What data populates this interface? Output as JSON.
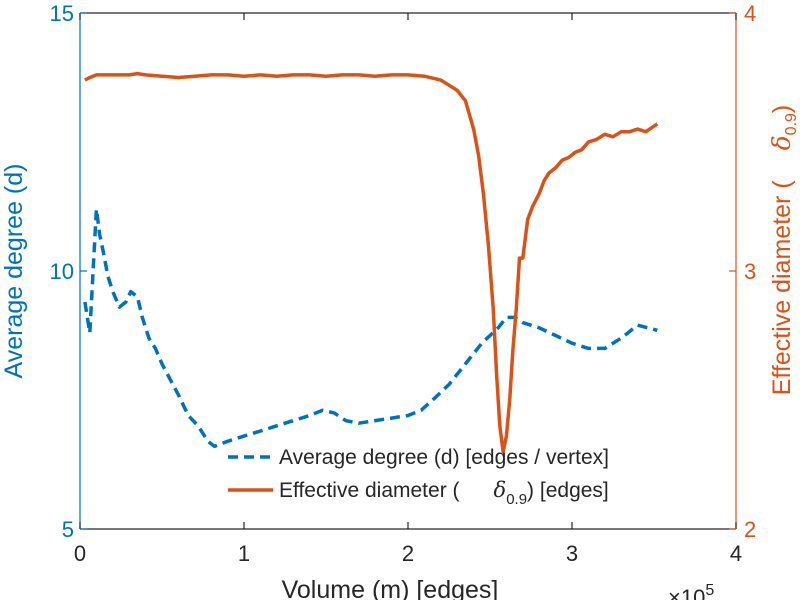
{
  "chart_data": {
    "type": "line",
    "x_exponent": "×10",
    "x_exponent_power": "5",
    "xlim": [
      0,
      4
    ],
    "xticks": [
      "0",
      "1",
      "2",
      "3",
      "4"
    ],
    "xlabel": "Volume (m) [edges]",
    "ylim_left": [
      5,
      15
    ],
    "yticks_left": [
      "5",
      "10",
      "15"
    ],
    "ylabel_left": "Average degree (d)",
    "ylim_right": [
      2,
      4
    ],
    "yticks_right": [
      "2",
      "3",
      "4"
    ],
    "ylabel_right_prefix": "Effective diameter (",
    "ylabel_right_symbol": "δ",
    "ylabel_right_subscript": "0.9",
    "ylabel_right_suffix": ")",
    "legend_position": "bottom-center",
    "colors": {
      "left_axis": "#0072bd",
      "right_axis": "#d95319",
      "grid": "#262626"
    },
    "series": [
      {
        "name": "Average degree (d) [edges / vertex]",
        "axis": "left",
        "style": "dashed",
        "color": "#0072bd",
        "x": [
          0.03,
          0.06,
          0.08,
          0.1,
          0.12,
          0.14,
          0.17,
          0.2,
          0.24,
          0.28,
          0.31,
          0.35,
          0.38,
          0.42,
          0.46,
          0.5,
          0.55,
          0.6,
          0.66,
          0.72,
          0.78,
          0.82,
          0.9,
          1.0,
          1.1,
          1.2,
          1.3,
          1.4,
          1.48,
          1.55,
          1.62,
          1.7,
          1.8,
          1.9,
          2.0,
          2.08,
          2.15,
          2.25,
          2.35,
          2.45,
          2.55,
          2.6,
          2.65,
          2.7,
          2.8,
          2.9,
          3.0,
          3.1,
          3.2,
          3.3,
          3.4,
          3.52
        ],
        "y": [
          9.4,
          8.8,
          10.0,
          11.2,
          10.7,
          10.4,
          9.9,
          9.6,
          9.3,
          9.4,
          9.6,
          9.5,
          9.1,
          8.7,
          8.5,
          8.2,
          7.9,
          7.6,
          7.2,
          7.0,
          6.7,
          6.6,
          6.7,
          6.8,
          6.9,
          7.0,
          7.1,
          7.2,
          7.3,
          7.25,
          7.1,
          7.05,
          7.1,
          7.15,
          7.2,
          7.3,
          7.5,
          7.8,
          8.2,
          8.6,
          8.9,
          9.1,
          9.1,
          9.0,
          8.9,
          8.75,
          8.6,
          8.5,
          8.5,
          8.7,
          8.95,
          8.85
        ]
      },
      {
        "name": "Effective diameter (δ0.9) [edges]",
        "name_prefix": "Effective diameter (",
        "name_symbol": "δ",
        "name_subscript": "0.9",
        "name_suffix": ") [edges]",
        "axis": "right",
        "style": "solid",
        "color": "#d95319",
        "x": [
          0.03,
          0.06,
          0.1,
          0.15,
          0.2,
          0.25,
          0.3,
          0.35,
          0.4,
          0.5,
          0.6,
          0.7,
          0.8,
          0.9,
          1.0,
          1.1,
          1.2,
          1.3,
          1.4,
          1.5,
          1.6,
          1.7,
          1.8,
          1.9,
          2.0,
          2.1,
          2.2,
          2.25,
          2.3,
          2.35,
          2.4,
          2.43,
          2.46,
          2.49,
          2.52,
          2.54,
          2.56,
          2.58,
          2.6,
          2.62,
          2.64,
          2.66,
          2.68,
          2.7,
          2.73,
          2.76,
          2.8,
          2.83,
          2.86,
          2.9,
          2.94,
          2.98,
          3.02,
          3.06,
          3.1,
          3.15,
          3.2,
          3.25,
          3.3,
          3.35,
          3.4,
          3.45,
          3.52
        ],
        "y": [
          3.74,
          3.75,
          3.76,
          3.76,
          3.76,
          3.76,
          3.76,
          3.765,
          3.76,
          3.755,
          3.75,
          3.755,
          3.76,
          3.76,
          3.755,
          3.76,
          3.755,
          3.76,
          3.76,
          3.755,
          3.76,
          3.76,
          3.755,
          3.76,
          3.76,
          3.755,
          3.74,
          3.72,
          3.7,
          3.66,
          3.55,
          3.45,
          3.3,
          3.1,
          2.85,
          2.6,
          2.4,
          2.3,
          2.36,
          2.5,
          2.7,
          2.85,
          3.05,
          3.05,
          3.2,
          3.25,
          3.3,
          3.35,
          3.38,
          3.4,
          3.43,
          3.44,
          3.46,
          3.47,
          3.5,
          3.51,
          3.53,
          3.52,
          3.54,
          3.54,
          3.55,
          3.54,
          3.57
        ]
      }
    ]
  }
}
